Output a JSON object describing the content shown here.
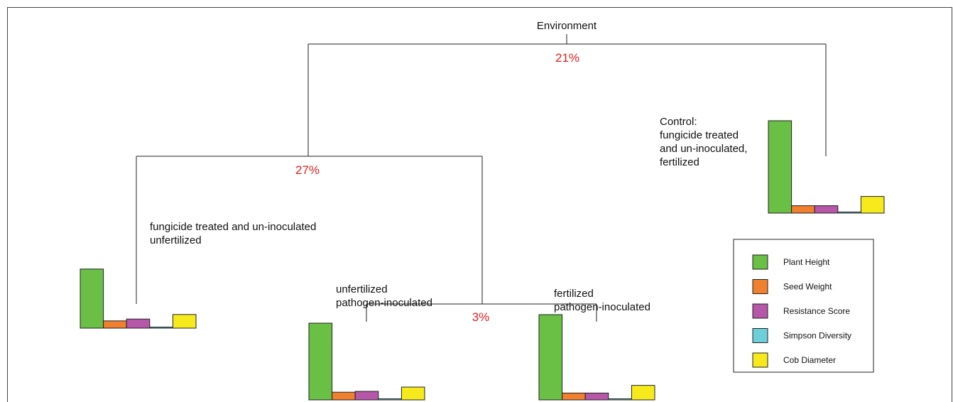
{
  "chart_data": {
    "type": "bar",
    "root_label": "Environment",
    "splits": [
      {
        "id": "root",
        "percent": "21%"
      },
      {
        "id": "left",
        "percent": "27%"
      },
      {
        "id": "inoculated",
        "percent": "3%"
      }
    ],
    "categories": [
      "Plant Height",
      "Seed Weight",
      "Resistance Score",
      "Simpson Diversity",
      "Cob Diameter"
    ],
    "colors": [
      "#6abf45",
      "#f07f2e",
      "#b657a8",
      "#6ccfd9",
      "#f7ea1c"
    ],
    "leaves": [
      {
        "id": "control",
        "label_lines": [
          "Control:",
          "fungicide treated",
          "and un-inoculated,",
          "fertilized"
        ],
        "values": [
          1.0,
          0.08,
          0.08,
          0.01,
          0.18
        ]
      },
      {
        "id": "unfertilized-treated",
        "label_lines": [
          "fungicide treated and un-inoculated",
          "unfertilized"
        ],
        "values": [
          0.65,
          0.08,
          0.1,
          0.01,
          0.15
        ]
      },
      {
        "id": "unfertilized-inoculated",
        "label_lines": [
          "unfertilized",
          "pathogen-inoculated"
        ],
        "values": [
          0.9,
          0.09,
          0.1,
          0.01,
          0.15
        ]
      },
      {
        "id": "fertilized-inoculated",
        "label_lines": [
          "fertilized",
          "pathogen-inoculated"
        ],
        "values": [
          1.0,
          0.08,
          0.08,
          0.01,
          0.17
        ]
      }
    ],
    "legend": {
      "entries": [
        "Plant Height",
        "Seed Weight",
        "Resistance Score",
        "Simpson Diversity",
        "Cob Diameter"
      ]
    }
  }
}
